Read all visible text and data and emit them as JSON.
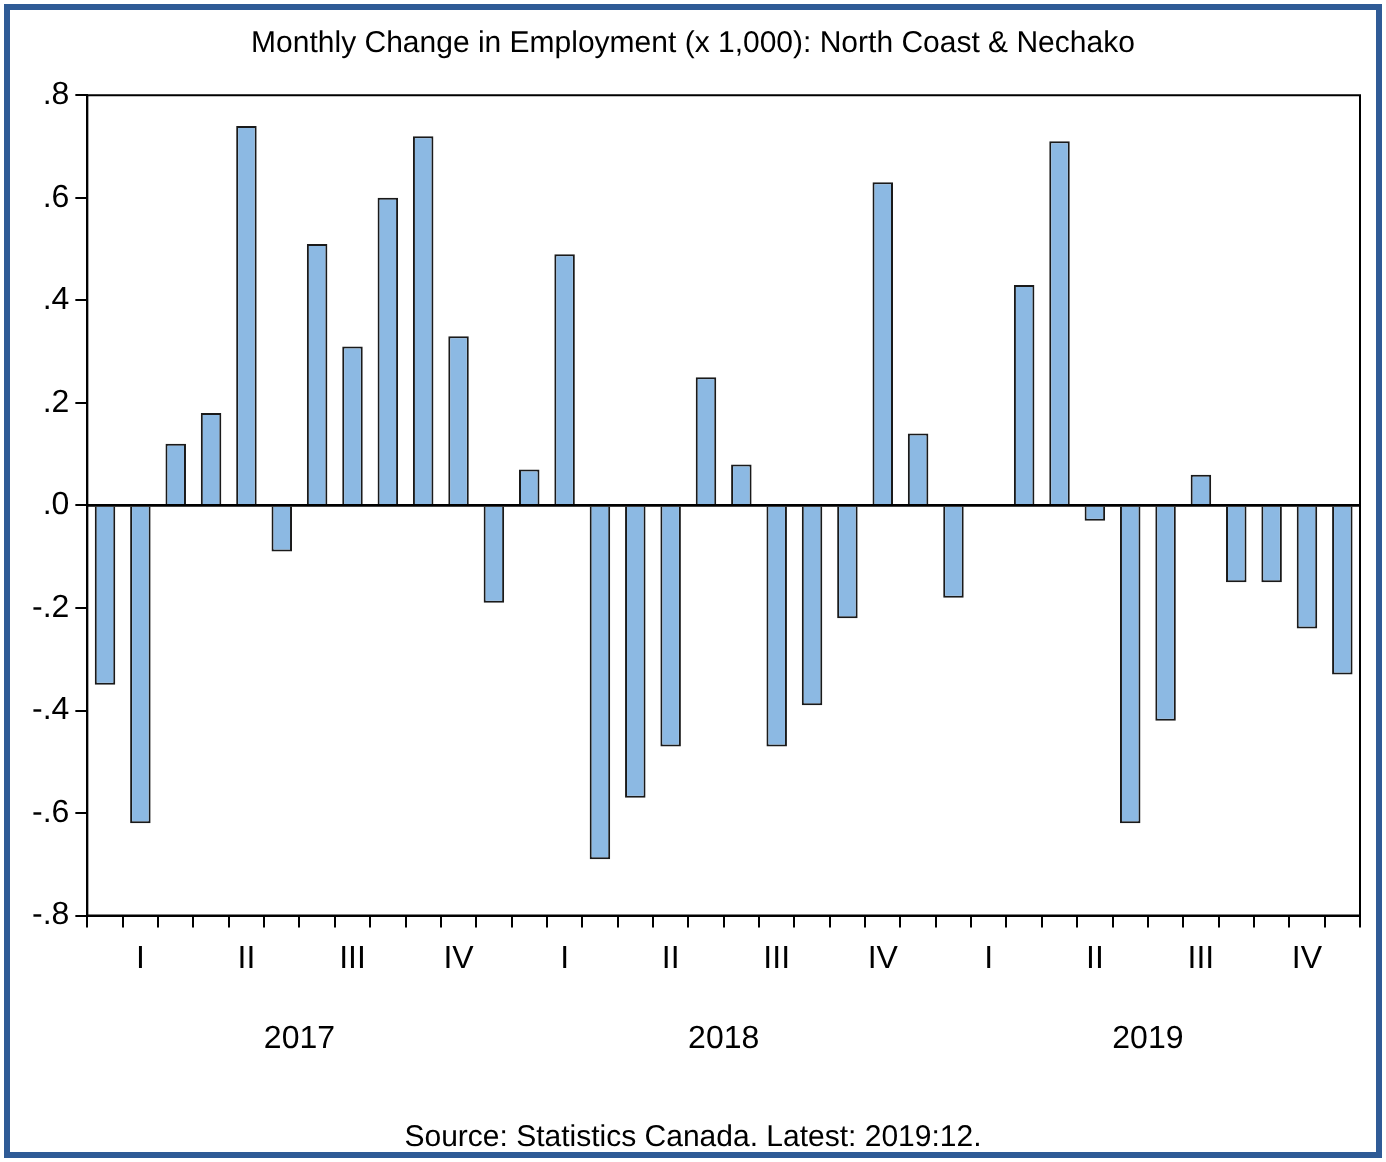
{
  "chart_data": {
    "type": "bar",
    "title": "Monthly Change in Employment (x 1,000): North Coast & Nechako",
    "categories": [
      null,
      "I",
      null,
      null,
      "II",
      null,
      null,
      "III",
      null,
      null,
      "IV",
      null,
      null,
      "I",
      null,
      null,
      "II",
      null,
      null,
      "III",
      null,
      null,
      "IV",
      null,
      null,
      "I",
      null,
      null,
      "II",
      null,
      null,
      "III",
      null,
      null,
      "IV",
      null
    ],
    "values": [
      -0.35,
      -0.62,
      0.12,
      0.18,
      0.74,
      -0.09,
      0.51,
      0.31,
      0.6,
      0.72,
      0.33,
      -0.19,
      0.07,
      0.49,
      -0.69,
      -0.57,
      -0.47,
      0.25,
      0.08,
      -0.47,
      -0.39,
      -0.22,
      0.63,
      0.14,
      -0.18,
      0.0,
      0.43,
      0.71,
      -0.03,
      -0.62,
      -0.42,
      0.06,
      -0.15,
      -0.15,
      -0.24,
      -0.33
    ],
    "color": "#8cb9e3",
    "ylim": [
      -0.8,
      0.8
    ],
    "yticks": [
      {
        "value": -0.8,
        "label": "-.8"
      },
      {
        "value": -0.6,
        "label": "-.6"
      },
      {
        "value": -0.4,
        "label": "-.4"
      },
      {
        "value": -0.2,
        "label": "-.2"
      },
      {
        "value": 0,
        "label": ".0"
      },
      {
        "value": 0.2,
        "label": ".2"
      },
      {
        "value": 0.4,
        "label": ".4"
      },
      {
        "value": 0.6,
        "label": ".6"
      },
      {
        "value": 0.8,
        "label": ".8"
      }
    ],
    "ref_lines": [
      {
        "axis": "y",
        "value": 0,
        "color": "#000000"
      }
    ],
    "grid": false,
    "legend": false,
    "annotations": [
      "2017",
      "2018",
      "2019",
      "Source: Statistics Canada. Latest: 2019:12."
    ]
  }
}
